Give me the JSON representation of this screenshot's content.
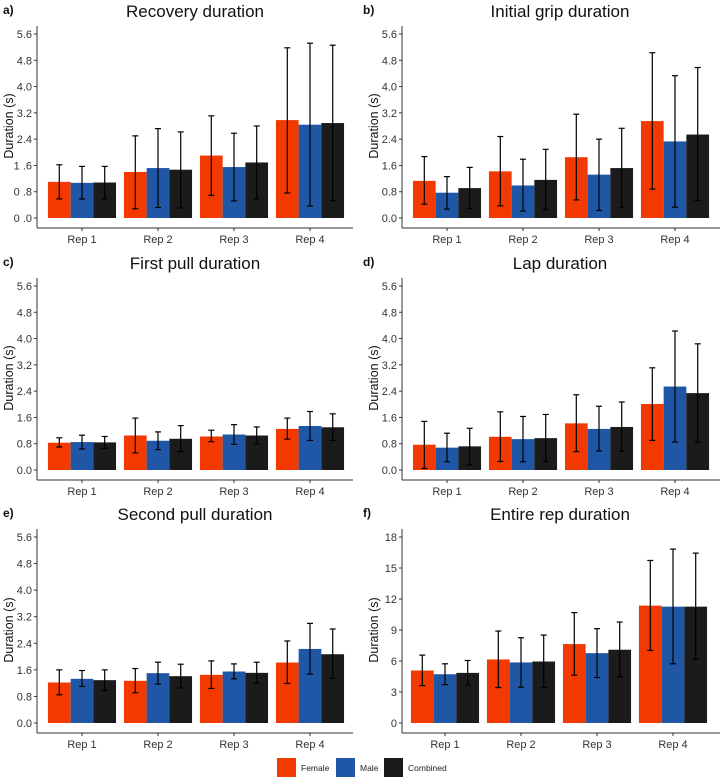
{
  "chart_data": {
    "type": "bar",
    "legend": {
      "placement": "bottom",
      "entries": [
        "Female",
        "Male",
        "Combined"
      ]
    },
    "series_colors": {
      "Female": "#F23A00",
      "Male": "#1F57A6",
      "Combined": "#1B1B1B"
    },
    "panels": [
      {
        "letter": "a)",
        "title": "Recovery duration",
        "ylabel": "Duration (s)",
        "categories": [
          "Rep 1",
          "Rep 2",
          "Rep 3",
          "Rep 4"
        ],
        "ylim": [
          0,
          5.6
        ],
        "yticks": [
          0,
          0.8,
          1.6,
          2.4,
          3.2,
          4.0,
          4.8,
          5.6
        ],
        "ytick_labels": [
          "0 .0",
          "0 .8",
          "1 .6",
          "2.4",
          "3.2",
          "4.0",
          "4.8",
          "5.6"
        ],
        "series": [
          {
            "name": "Female",
            "values": [
              1.1,
              1.4,
              1.9,
              2.98
            ],
            "err_low": [
              0.58,
              0.28,
              0.69,
              0.76
            ],
            "err_high": [
              1.62,
              2.5,
              3.11,
              5.18
            ]
          },
          {
            "name": "Male",
            "values": [
              1.07,
              1.52,
              1.55,
              2.84
            ],
            "err_low": [
              0.58,
              0.32,
              0.52,
              0.36
            ],
            "err_high": [
              1.57,
              2.72,
              2.58,
              5.32
            ]
          },
          {
            "name": "Combined",
            "values": [
              1.08,
              1.47,
              1.69,
              2.89
            ],
            "err_low": [
              0.58,
              0.3,
              0.58,
              0.53
            ],
            "err_high": [
              1.57,
              2.62,
              2.8,
              5.26
            ]
          }
        ]
      },
      {
        "letter": "b)",
        "title": "Initial grip duration",
        "ylabel": "Duration (s)",
        "categories": [
          "Rep 1",
          "Rep 2",
          "Rep 3",
          "Rep 4"
        ],
        "ylim": [
          0,
          5.6
        ],
        "yticks": [
          0,
          0.8,
          1.6,
          2.4,
          3.2,
          4.0,
          4.8,
          5.6
        ],
        "ytick_labels": [
          "0.0",
          "0.8",
          "1.6",
          "2.4",
          "3.2",
          "4.0",
          "4.8",
          "5.6"
        ],
        "series": [
          {
            "name": "Female",
            "values": [
              1.13,
              1.42,
              1.85,
              2.95
            ],
            "err_low": [
              0.42,
              0.37,
              0.55,
              0.88
            ],
            "err_high": [
              1.87,
              2.48,
              3.16,
              5.03
            ]
          },
          {
            "name": "Male",
            "values": [
              0.77,
              0.99,
              1.32,
              2.33
            ],
            "err_low": [
              0.27,
              0.21,
              0.23,
              0.33
            ],
            "err_high": [
              1.26,
              1.79,
              2.4,
              4.33
            ]
          },
          {
            "name": "Combined",
            "values": [
              0.91,
              1.16,
              1.52,
              2.54
            ],
            "err_low": [
              0.29,
              0.25,
              0.33,
              0.53
            ],
            "err_high": [
              1.54,
              2.09,
              2.73,
              4.58
            ]
          }
        ]
      },
      {
        "letter": "c)",
        "title": "First pull duration",
        "ylabel": "Duration (s)",
        "categories": [
          "Rep 1",
          "Rep 2",
          "Rep 3",
          "Rep 4"
        ],
        "ylim": [
          0,
          5.6
        ],
        "yticks": [
          0,
          0.8,
          1.6,
          2.4,
          3.2,
          4.0,
          4.8,
          5.6
        ],
        "ytick_labels": [
          "0.0",
          "0.8",
          "1.6",
          "2.4",
          "3.2",
          "4.0",
          "4.8",
          "5.6"
        ],
        "series": [
          {
            "name": "Female",
            "values": [
              0.83,
              1.05,
              1.02,
              1.25
            ],
            "err_low": [
              0.7,
              0.52,
              0.86,
              0.94
            ],
            "err_high": [
              0.98,
              1.58,
              1.21,
              1.58
            ]
          },
          {
            "name": "Male",
            "values": [
              0.85,
              0.89,
              1.08,
              1.34
            ],
            "err_low": [
              0.64,
              0.62,
              0.78,
              0.9
            ],
            "err_high": [
              1.06,
              1.16,
              1.38,
              1.78
            ]
          },
          {
            "name": "Combined",
            "values": [
              0.84,
              0.95,
              1.05,
              1.3
            ],
            "err_low": [
              0.66,
              0.56,
              0.8,
              0.9
            ],
            "err_high": [
              1.02,
              1.35,
              1.31,
              1.71
            ]
          }
        ]
      },
      {
        "letter": "d)",
        "title": "Lap duration",
        "ylabel": "Duration (s)",
        "categories": [
          "Rep 1",
          "Rep 2",
          "Rep 3",
          "Rep 4"
        ],
        "ylim": [
          0,
          5.6
        ],
        "yticks": [
          0,
          0.8,
          1.6,
          2.4,
          3.2,
          4.0,
          4.8,
          5.6
        ],
        "ytick_labels": [
          "0.0",
          "0.8",
          "1.6",
          "2.4",
          "3.2",
          "4.0",
          "4.8",
          "5.6"
        ],
        "series": [
          {
            "name": "Female",
            "values": [
              0.77,
              1.01,
              1.42,
              2.01
            ],
            "err_low": [
              0.05,
              0.26,
              0.56,
              0.9
            ],
            "err_high": [
              1.48,
              1.77,
              2.29,
              3.11
            ]
          },
          {
            "name": "Male",
            "values": [
              0.68,
              0.94,
              1.25,
              2.54
            ],
            "err_low": [
              0.25,
              0.25,
              0.58,
              0.85
            ],
            "err_high": [
              1.12,
              1.63,
              1.94,
              4.23
            ]
          },
          {
            "name": "Combined",
            "values": [
              0.72,
              0.97,
              1.31,
              2.34
            ],
            "err_low": [
              0.16,
              0.25,
              0.57,
              0.85
            ],
            "err_high": [
              1.27,
              1.69,
              2.07,
              3.84
            ]
          }
        ]
      },
      {
        "letter": "e)",
        "title": "Second pull duration",
        "ylabel": "Duration (s)",
        "categories": [
          "Rep 1",
          "Rep 2",
          "Rep 3",
          "Rep 4"
        ],
        "ylim": [
          0,
          5.6
        ],
        "yticks": [
          0,
          0.8,
          1.6,
          2.4,
          3.2,
          4.0,
          4.8,
          5.6
        ],
        "ytick_labels": [
          "0.0",
          "0.8",
          "1.6",
          "2.4",
          "3.2",
          "4.0",
          "4.8",
          "5.6"
        ],
        "series": [
          {
            "name": "Female",
            "values": [
              1.22,
              1.27,
              1.45,
              1.82
            ],
            "err_low": [
              0.85,
              0.91,
              1.04,
              1.19
            ],
            "err_high": [
              1.6,
              1.64,
              1.87,
              2.47
            ]
          },
          {
            "name": "Male",
            "values": [
              1.33,
              1.5,
              1.55,
              2.23
            ],
            "err_low": [
              1.1,
              1.17,
              1.33,
              1.47
            ],
            "err_high": [
              1.58,
              1.83,
              1.78,
              3.0
            ]
          },
          {
            "name": "Combined",
            "values": [
              1.29,
              1.41,
              1.51,
              2.07
            ],
            "err_low": [
              0.98,
              1.05,
              1.2,
              1.34
            ],
            "err_high": [
              1.6,
              1.77,
              1.83,
              2.83
            ]
          }
        ]
      },
      {
        "letter": "f)",
        "title": "Entire rep duration",
        "ylabel": "Duration (s)",
        "categories": [
          "Rep 1",
          "Rep 2",
          "Rep 3",
          "Rep 4"
        ],
        "ylim": [
          0,
          18
        ],
        "yticks": [
          0,
          3,
          6,
          9,
          12,
          15,
          18
        ],
        "ytick_labels": [
          "0",
          "3",
          "6",
          "9",
          "12",
          "15",
          "18"
        ],
        "series": [
          {
            "name": "Female",
            "values": [
              5.08,
              6.15,
              7.64,
              11.36
            ],
            "err_low": [
              3.62,
              3.43,
              4.63,
              7.02
            ],
            "err_high": [
              6.57,
              8.9,
              10.68,
              15.73
            ]
          },
          {
            "name": "Male",
            "values": [
              4.72,
              5.86,
              6.76,
              11.26
            ],
            "err_low": [
              3.72,
              3.46,
              4.4,
              5.73
            ],
            "err_high": [
              5.73,
              8.25,
              9.13,
              16.83
            ]
          },
          {
            "name": "Combined",
            "values": [
              4.85,
              5.95,
              7.09,
              11.26
            ],
            "err_low": [
              3.66,
              3.43,
              4.47,
              6.18
            ],
            "err_high": [
              6.05,
              8.51,
              9.77,
              16.44
            ]
          }
        ]
      }
    ]
  }
}
